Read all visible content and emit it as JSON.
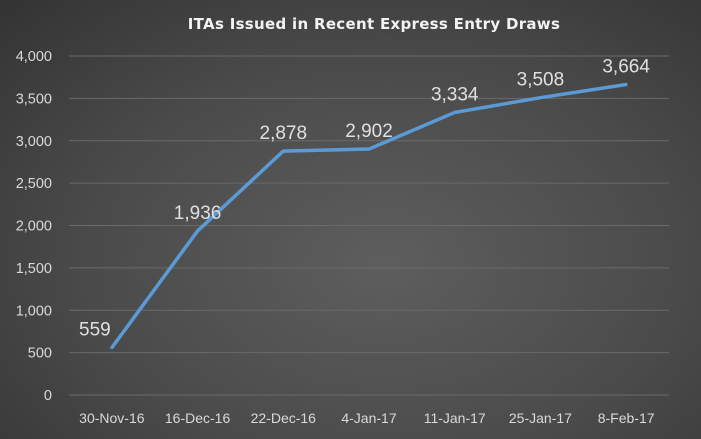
{
  "chart_data": {
    "type": "line",
    "title": "ITAs Issued in Recent Express Entry Draws",
    "xlabel": "",
    "ylabel": "",
    "categories": [
      "30-Nov-16",
      "16-Dec-16",
      "22-Dec-16",
      "4-Jan-17",
      "11-Jan-17",
      "25-Jan-17",
      "8-Feb-17"
    ],
    "series": [
      {
        "name": "ITAs Issued",
        "values": [
          559,
          1936,
          2878,
          2902,
          3334,
          3508,
          3664
        ],
        "labels": [
          "559",
          "1,936",
          "2,878",
          "2,902",
          "3,334",
          "3,508",
          "3,664"
        ]
      }
    ],
    "ylim": [
      0,
      4000
    ],
    "yticks": [
      0,
      500,
      1000,
      1500,
      2000,
      2500,
      3000,
      3500,
      4000
    ],
    "ytick_labels": [
      "0",
      "500",
      "1,000",
      "1,500",
      "2,000",
      "2,500",
      "3,000",
      "3,500",
      "4,000"
    ],
    "grid": true,
    "legend": "none",
    "colors": {
      "line": "#5b9bd5",
      "grid": "#6a6a6a"
    }
  }
}
